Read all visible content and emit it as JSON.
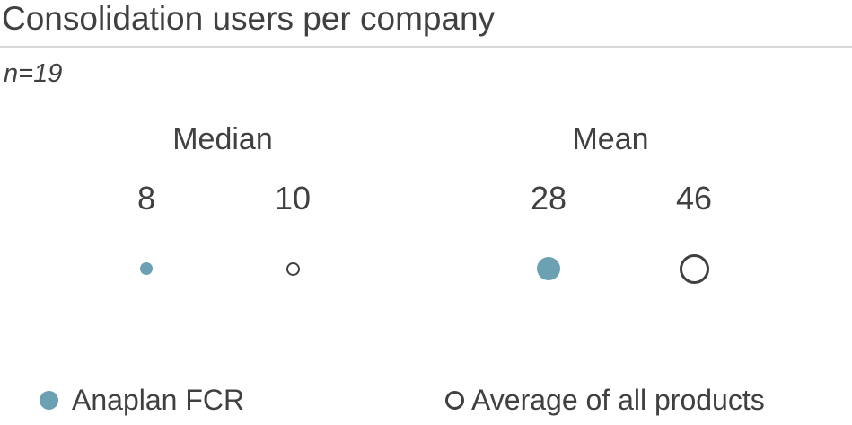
{
  "colors": {
    "accent": "#6BA1B2",
    "outline": "#404040",
    "text": "#404040",
    "divider": "#D8D8D8"
  },
  "chart_data": {
    "type": "scatter",
    "title": "Consolidation users per company",
    "subtitle": "n=19",
    "sample_size": 19,
    "bubble_scale": "diameter proportional to sqrt(value)",
    "groups": [
      {
        "label": "Median",
        "points": [
          {
            "series": "Anaplan FCR",
            "value": 8,
            "style": "filled"
          },
          {
            "series": "Average of all products",
            "value": 10,
            "style": "open"
          }
        ]
      },
      {
        "label": "Mean",
        "points": [
          {
            "series": "Anaplan FCR",
            "value": 28,
            "style": "filled"
          },
          {
            "series": "Average of all products",
            "value": 46,
            "style": "open"
          }
        ]
      }
    ],
    "legend": [
      {
        "label": "Anaplan FCR",
        "marker": "filled-circle"
      },
      {
        "label": "Average of all products",
        "marker": "open-circle"
      }
    ]
  }
}
